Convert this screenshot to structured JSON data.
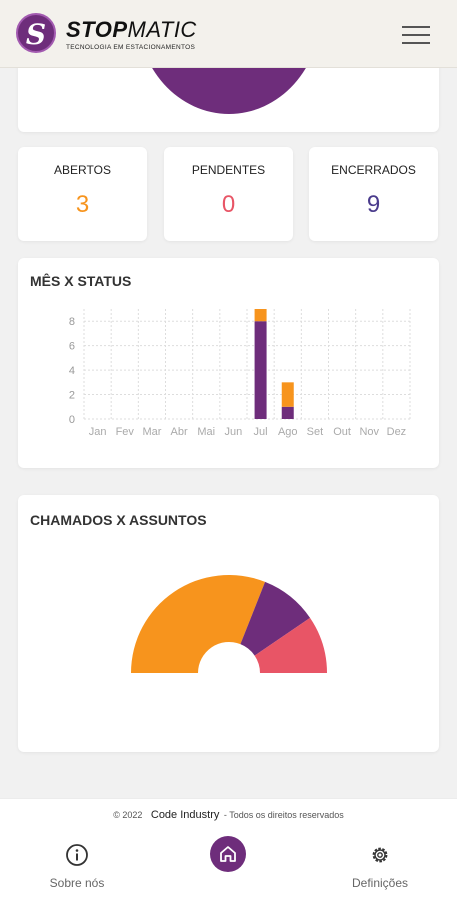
{
  "header": {
    "logo_letter": "S",
    "brand_bold": "STOP",
    "brand_rest": "MATIC",
    "tagline": "TECNOLOGIA EM ESTACIONAMENTOS",
    "menu_icon": "hamburger-menu-icon"
  },
  "stats": [
    {
      "label": "ABERTOS",
      "value": "3",
      "color": "#f7941d"
    },
    {
      "label": "PENDENTES",
      "value": "0",
      "color": "#e85566"
    },
    {
      "label": "ENCERRADOS",
      "value": "9",
      "color": "#4a3b8c"
    }
  ],
  "colors": {
    "purple": "#6e2d7b",
    "orange": "#f7941d",
    "red": "#e85566"
  },
  "charts": {
    "status_pie_title": "",
    "bar_title": "MÊS X STATUS",
    "donut_title": "CHAMADOS X ASSUNTOS"
  },
  "chart_data": [
    {
      "type": "pie",
      "title": "",
      "slices": [
        {
          "value": 1,
          "color": "#6e2d7b"
        }
      ],
      "note_partial": true
    },
    {
      "type": "bar",
      "stacked": true,
      "title": "MÊS X STATUS",
      "categories": [
        "Jan",
        "Fev",
        "Mar",
        "Abr",
        "Mai",
        "Jun",
        "Jul",
        "Ago",
        "Set",
        "Out",
        "Nov",
        "Dez"
      ],
      "series": [
        {
          "color": "#6e2d7b",
          "values": [
            0,
            0,
            0,
            0,
            0,
            0,
            8,
            1,
            0,
            0,
            0,
            0
          ]
        },
        {
          "color": "#f7941d",
          "values": [
            0,
            0,
            0,
            0,
            0,
            0,
            1,
            2,
            0,
            0,
            0,
            0
          ]
        }
      ],
      "yticks": [
        0,
        2,
        4,
        6,
        8
      ],
      "ylim": [
        0,
        9
      ],
      "grid": true
    },
    {
      "type": "pie",
      "subtype": "half-donut",
      "title": "CHAMADOS X ASSUNTOS",
      "slices": [
        {
          "value": 62,
          "color": "#f7941d"
        },
        {
          "value": 19,
          "color": "#6e2d7b"
        },
        {
          "value": 19,
          "color": "#e85566"
        }
      ]
    }
  ],
  "footer": {
    "copyright": "© 2022",
    "company": "Code Industry",
    "rights": "- Todos os direitos reservados"
  },
  "nav": {
    "about_label": "Sobre nós",
    "about_icon": "info-circle-icon",
    "home_icon": "home-icon",
    "settings_label": "Definições",
    "settings_icon": "gear-icon"
  }
}
